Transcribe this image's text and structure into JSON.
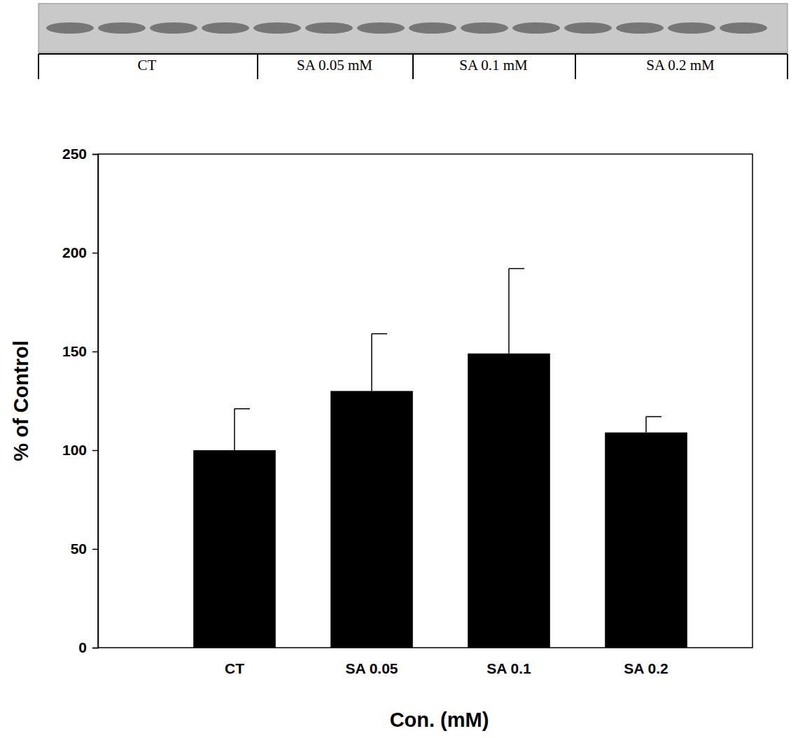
{
  "chart_data": {
    "type": "bar",
    "annotations": [
      "CT",
      "SA 0.05 mM",
      "SA 0.1 mM",
      "SA 0.2 mM"
    ],
    "x_label": "Con. (mM)",
    "y_label": "% of Control",
    "categories": [
      "CT",
      "SA 0.05",
      "SA 0.1",
      "SA 0.2"
    ],
    "values": [
      100,
      130,
      149,
      109
    ],
    "errors": [
      21,
      29,
      43,
      8
    ],
    "color": "#000000",
    "ylim": [
      0,
      250
    ],
    "yticks": [
      0,
      50,
      100,
      150,
      200,
      250
    ],
    "grid": false
  }
}
